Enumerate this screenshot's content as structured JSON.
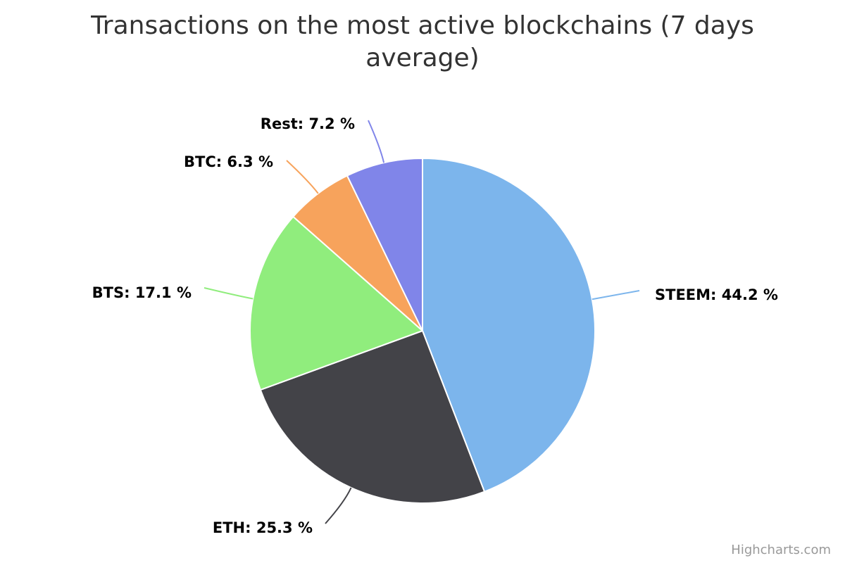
{
  "chart_data": {
    "type": "pie",
    "title": "Transactions on the most active blockchains (7 days average)",
    "label_suffix": " %",
    "slices": [
      {
        "name": "STEEM",
        "value": 44.2,
        "color": "#7cb5ec"
      },
      {
        "name": "ETH",
        "value": 25.3,
        "color": "#434348"
      },
      {
        "name": "BTS",
        "value": 17.1,
        "color": "#90ed7d"
      },
      {
        "name": "BTC",
        "value": 6.3,
        "color": "#f7a35c"
      },
      {
        "name": "Rest",
        "value": 7.2,
        "color": "#8085e9"
      }
    ]
  },
  "credits": "Highcharts.com"
}
